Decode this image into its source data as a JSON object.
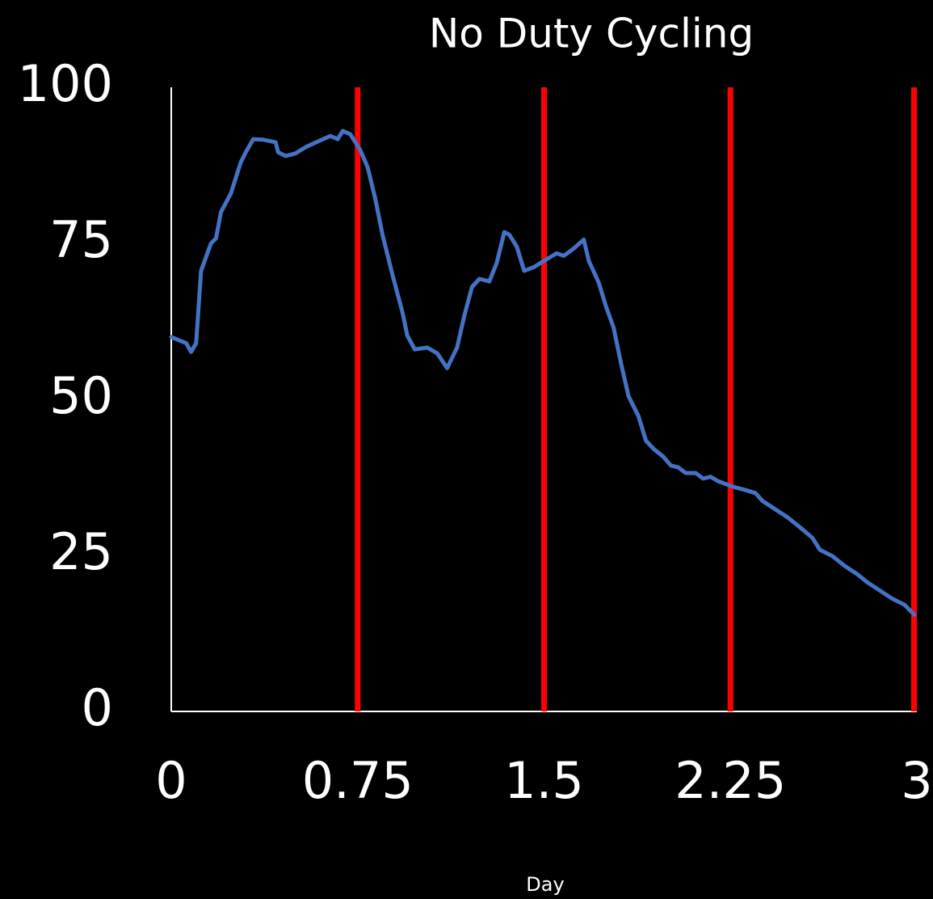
{
  "chart_data": {
    "type": "line",
    "title": "No Duty Cycling",
    "x_label": "Day",
    "xlim": [
      0,
      3
    ],
    "xticks": [
      0,
      0.75,
      1.5,
      2.25,
      3
    ],
    "ylim": [
      0,
      100
    ],
    "yticks": [
      0,
      25,
      50,
      75,
      100
    ],
    "x_grid": true,
    "y_grid": false,
    "grid_color": "#ff0000",
    "series": [
      {
        "color": "#4472c4",
        "x": [
          0,
          0.06,
          0.08,
          0.1,
          0.12,
          0.16,
          0.18,
          0.2,
          0.24,
          0.28,
          0.3,
          0.33,
          0.37,
          0.42,
          0.43,
          0.46,
          0.5,
          0.54,
          0.6,
          0.64,
          0.67,
          0.69,
          0.72,
          0.76,
          0.79,
          0.82,
          0.85,
          0.89,
          0.93,
          0.95,
          0.98,
          1.03,
          1.07,
          1.11,
          1.15,
          1.18,
          1.21,
          1.24,
          1.28,
          1.31,
          1.34,
          1.36,
          1.39,
          1.42,
          1.46,
          1.5,
          1.55,
          1.58,
          1.62,
          1.66,
          1.68,
          1.72,
          1.75,
          1.78,
          1.81,
          1.84,
          1.88,
          1.91,
          1.94,
          1.98,
          2.01,
          2.04,
          2.07,
          2.11,
          2.14,
          2.17,
          2.2,
          2.24,
          2.27,
          2.3,
          2.35,
          2.38,
          2.43,
          2.48,
          2.53,
          2.58,
          2.61,
          2.66,
          2.71,
          2.76,
          2.8,
          2.85,
          2.9,
          2.95,
          2.99
        ],
        "values": [
          60,
          59,
          57.6,
          59,
          70.6,
          75,
          75.8,
          80,
          83,
          88,
          89.6,
          91.7,
          91.6,
          91.2,
          89.6,
          89,
          89.4,
          90.4,
          91.5,
          92.2,
          91.7,
          93,
          92.5,
          90,
          87.2,
          82.3,
          76.4,
          70,
          64,
          60.2,
          58,
          58.3,
          57.4,
          55,
          58.3,
          63.5,
          68,
          69.3,
          68.9,
          71.9,
          76.8,
          76.4,
          74.5,
          70.6,
          71.2,
          72.2,
          73.4,
          73,
          74.2,
          75.6,
          72.2,
          68.7,
          64.8,
          61.5,
          55.7,
          50.5,
          47.3,
          43.4,
          42.1,
          40.8,
          39.4,
          39.1,
          38.2,
          38.2,
          37.3,
          37.6,
          36.9,
          36.3,
          35.9,
          35.6,
          35,
          33.7,
          32.4,
          31.1,
          29.5,
          27.8,
          25.9,
          24.9,
          23.3,
          22,
          20.7,
          19.4,
          18.1,
          17.1,
          15.5
        ]
      }
    ]
  }
}
